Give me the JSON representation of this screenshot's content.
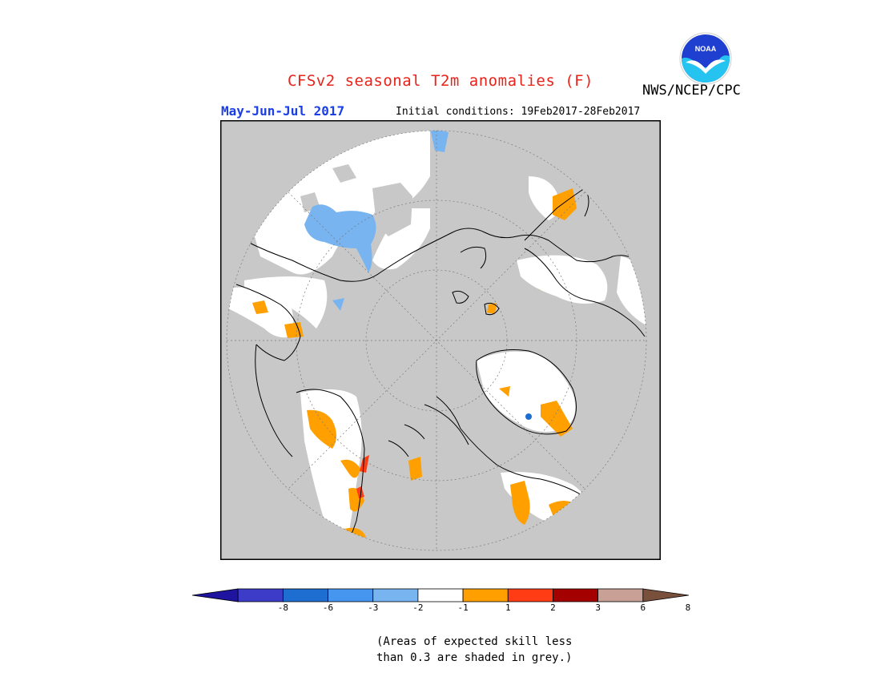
{
  "title": "CFSv2 seasonal T2m anomalies (F)",
  "title_color": "#e8231a",
  "period": "May-Jun-Jul 2017",
  "period_color": "#1a3ee8",
  "initial_conditions": "Initial conditions: 19Feb2017-28Feb2017",
  "agency": "NWS/NCEP/CPC",
  "logo_text": "NOAA",
  "colors": {
    "skill_grey": "#c8c8c8",
    "neutral_white": "#ffffff",
    "anom_pos_1": "#ffa000",
    "anom_pos_2": "#ff3c14",
    "anom_pos_3": "#a50000",
    "anom_pos_6": "#c8a096",
    "anom_pos_8": "#78503c",
    "anom_neg_1": "#78b4f0",
    "anom_neg_2": "#4696f0",
    "anom_neg_3": "#1e6ed2",
    "anom_neg_6": "#3c3cc8",
    "anom_neg_8": "#1e14a0"
  },
  "legend": {
    "ticks": [
      "-8",
      "-6",
      "-3",
      "-2",
      "-1",
      "1",
      "2",
      "3",
      "6",
      "8"
    ],
    "colors": [
      "#1e14a0",
      "#3c3cc8",
      "#1e6ed2",
      "#4696f0",
      "#78b4f0",
      "#ffffff",
      "#ffa000",
      "#ff3c14",
      "#a50000",
      "#c8a096",
      "#78503c"
    ]
  },
  "note_line1": "(Areas of expected skill less",
  "note_line2": "than 0.3 are shaded in grey.)"
}
